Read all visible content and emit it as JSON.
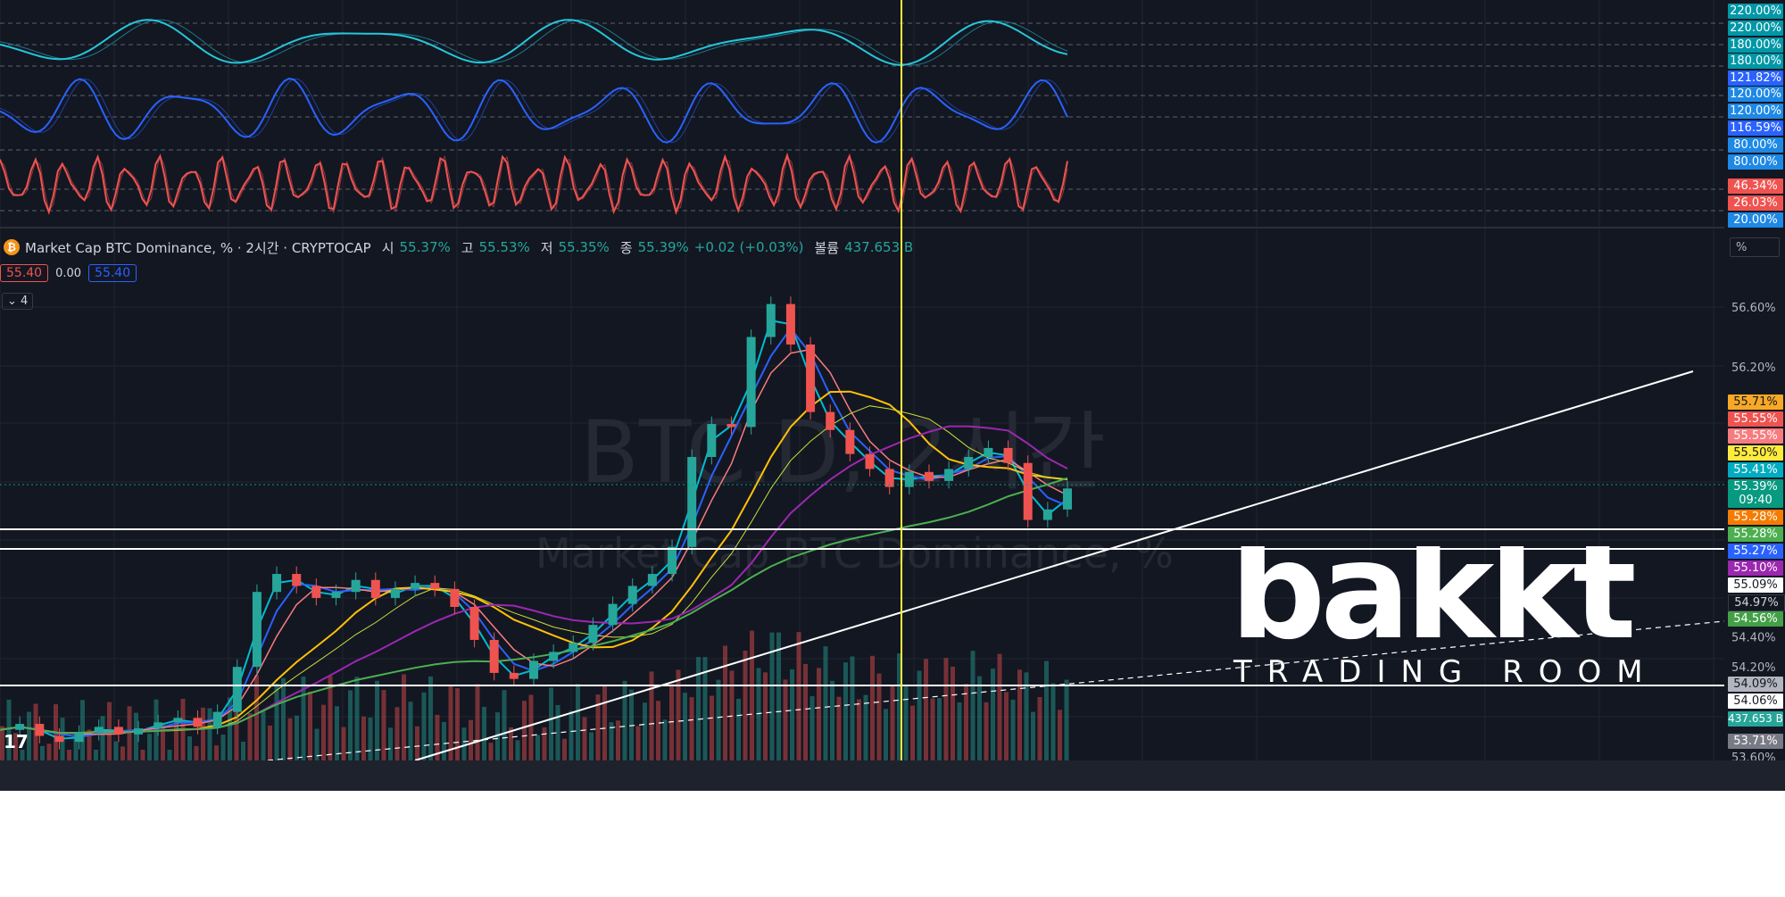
{
  "legend": {
    "symbol_icon": "bitcoin-icon",
    "title": "Market Cap BTC Dominance, % · 2시간 · CRYPTOCAP",
    "open_label": "시",
    "open_value": "55.37%",
    "high_label": "고",
    "high_value": "55.53%",
    "low_label": "저",
    "low_value": "55.35%",
    "close_label": "종",
    "close_value": "55.39%",
    "change": "+0.02 (+0.03%)",
    "volume_label": "볼륨",
    "volume_value": "437.653 B"
  },
  "value_boxes": {
    "sell": "55.40",
    "spread": "0.00",
    "buy": "55.40"
  },
  "indicators_toggle": "4",
  "percent_button": "%",
  "watermark": {
    "symbol": "BTC.D, 2시간",
    "name": "Market Cap BTC Dominance, %"
  },
  "logo": {
    "brand": "bakkt",
    "subtitle": "TRADING ROOM"
  },
  "colors": {
    "background": "#131722",
    "up": "#26a69a",
    "down": "#ef5350",
    "cursor": "#ffeb3b",
    "cyan_osc": "#26c6da",
    "blue_osc": "#2962ff",
    "red_osc": "#ef5350"
  },
  "osc_axis_tags": [
    {
      "text": "220.00%",
      "color": "#0097a7"
    },
    {
      "text": "220.00%",
      "color": "#0097a7"
    },
    {
      "text": "180.00%",
      "color": "#0097a7"
    },
    {
      "text": "180.00%",
      "color": "#0097a7"
    },
    {
      "text": "121.82%",
      "color": "#2962ff"
    },
    {
      "text": "120.00%",
      "color": "#1e88e5"
    },
    {
      "text": "120.00%",
      "color": "#1e88e5"
    },
    {
      "text": "116.59%",
      "color": "#2962ff"
    },
    {
      "text": "80.00%",
      "color": "#1e88e5"
    },
    {
      "text": "80.00%",
      "color": "#1e88e5"
    },
    {
      "text": "46.34%",
      "color": "#ef5350"
    },
    {
      "text": "26.03%",
      "color": "#ef5350"
    },
    {
      "text": "20.00%",
      "color": "#1e88e5"
    }
  ],
  "price_axis_labels": [
    "56.60%",
    "56.20%",
    "54.40%",
    "54.20%",
    "53.60%"
  ],
  "price_tags": [
    {
      "text": "55.71%",
      "bg": "#f9a825",
      "fg": "#131722"
    },
    {
      "text": "55.55%",
      "bg": "#ef5350",
      "fg": "#ffffff"
    },
    {
      "text": "55.55%",
      "bg": "#f77c80",
      "fg": "#ffffff"
    },
    {
      "text": "55.50%",
      "bg": "#ffeb3b",
      "fg": "#131722"
    },
    {
      "text": "55.41%",
      "bg": "#00acc1",
      "fg": "#ffffff"
    },
    {
      "text": "55.39%",
      "bg": "#089981",
      "fg": "#ffffff"
    },
    {
      "text": "09:40",
      "bg": "#089981",
      "fg": "#ffffff"
    },
    {
      "text": "55.28%",
      "bg": "#f57c00",
      "fg": "#ffffff"
    },
    {
      "text": "55.28%",
      "bg": "#4caf50",
      "fg": "#ffffff"
    },
    {
      "text": "55.27%",
      "bg": "#2962ff",
      "fg": "#ffffff"
    },
    {
      "text": "55.10%",
      "bg": "#9c27b0",
      "fg": "#ffffff"
    },
    {
      "text": "55.09%",
      "bg": "#ffffff",
      "fg": "#131722"
    },
    {
      "text": "54.97%",
      "bg": "#131722",
      "fg": "#d1d4dc"
    },
    {
      "text": "54.56%",
      "bg": "#43a047",
      "fg": "#ffffff"
    },
    {
      "text": "54.09%",
      "bg": "#b2b5be",
      "fg": "#131722"
    },
    {
      "text": "54.06%",
      "bg": "#ffffff",
      "fg": "#131722"
    },
    {
      "text": "437.653 B",
      "bg": "#26a69a",
      "fg": "#ffffff"
    },
    {
      "text": "53.71%",
      "bg": "#787b86",
      "fg": "#ffffff"
    }
  ],
  "chart_data": {
    "type": "line",
    "symbol": "BTC.D",
    "interval": "2시간",
    "close_series": [
      53.78,
      53.82,
      53.74,
      53.7,
      53.76,
      53.8,
      53.75,
      53.79,
      53.83,
      53.86,
      53.8,
      53.9,
      54.2,
      54.7,
      54.82,
      54.74,
      54.66,
      54.7,
      54.78,
      54.66,
      54.72,
      54.76,
      54.72,
      54.6,
      54.38,
      54.16,
      54.12,
      54.24,
      54.3,
      54.36,
      54.48,
      54.62,
      54.74,
      54.82,
      55.0,
      55.6,
      55.82,
      55.8,
      56.4,
      56.62,
      56.35,
      55.9,
      55.78,
      55.62,
      55.52,
      55.4,
      55.5,
      55.44,
      55.52,
      55.6,
      55.66,
      55.56,
      55.18,
      55.25,
      55.39
    ],
    "horizontal_levels": [
      55.28,
      55.24,
      54.09
    ],
    "cursor_index": 36
  }
}
